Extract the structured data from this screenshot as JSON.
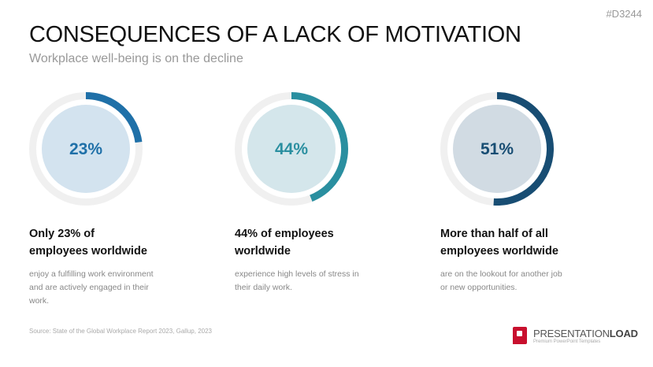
{
  "doc_code": "#D3244",
  "title": "CONSEQUENCES OF A LACK OF MOTIVATION",
  "subtitle": "Workplace well-being is on the decline",
  "stats": [
    {
      "value": 23,
      "label": "23%",
      "heading_line1": "Only 23% of",
      "heading_line2": "employees worldwide",
      "description": "enjoy a fulfilling work environment and are actively engaged in their work.",
      "color": "#1f70a8",
      "fill": "#d3e3ef"
    },
    {
      "value": 44,
      "label": "44%",
      "heading_line1": "44% of employees",
      "heading_line2": "worldwide",
      "description": "experience high levels of stress in their daily work.",
      "color": "#2a8fa0",
      "fill": "#d4e6eb"
    },
    {
      "value": 51,
      "label": "51%",
      "heading_line1": "More than half of all",
      "heading_line2": "employees worldwide",
      "description": "are on the lookout for another job or new opportunities.",
      "color": "#184d73",
      "fill": "#d1dbe3"
    }
  ],
  "source": "Source: State of the Global Workplace Report 2023, Gallup, 2023",
  "logo": {
    "name_light": "PRESENTATION",
    "name_bold": "LOAD",
    "tagline": "Premium PowerPoint Templates",
    "color": "#c8102e"
  }
}
